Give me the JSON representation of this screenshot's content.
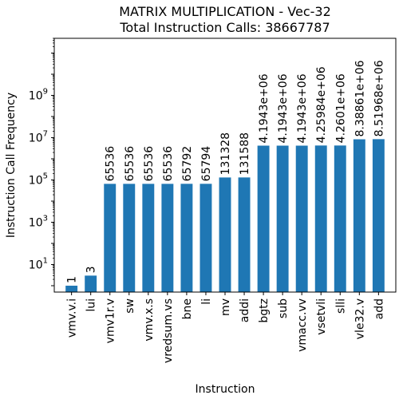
{
  "chart_data": {
    "type": "bar",
    "title_lines": [
      "MATRIX MULTIPLICATION - Vec-32",
      "Total Instruction Calls: 38667787"
    ],
    "xlabel": "Instruction",
    "ylabel": "Instruction Call Frequency",
    "yscale": "log",
    "ylim": [
      0.5,
      500000000000
    ],
    "ytick_base": "10",
    "ytick_exponents": [
      "1",
      "3",
      "5",
      "7",
      "9"
    ],
    "grid": false,
    "legend": "none",
    "bar_color": "#1f77b4",
    "categories": [
      "vmv.v.i",
      "lui",
      "vmv1r.v",
      "sw",
      "vmv.x.s",
      "vredsum.vs",
      "bne",
      "li",
      "mv",
      "addi",
      "bgtz",
      "sub",
      "vmacc.vv",
      "vsetvli",
      "slli",
      "vle32.v",
      "add"
    ],
    "values": [
      1,
      3,
      65536,
      65536,
      65536,
      65536,
      65792,
      65794,
      131328,
      131588,
      4194300,
      4194300,
      4194300,
      4259840,
      4260100,
      8388610,
      8519680
    ],
    "value_labels": [
      "1",
      "3",
      "65536",
      "65536",
      "65536",
      "65536",
      "65792",
      "65794",
      "131328",
      "131588",
      "4.1943e+06",
      "4.1943e+06",
      "4.1943e+06",
      "4.25984e+06",
      "4.2601e+06",
      "8.38861e+06",
      "8.51968e+06"
    ]
  }
}
